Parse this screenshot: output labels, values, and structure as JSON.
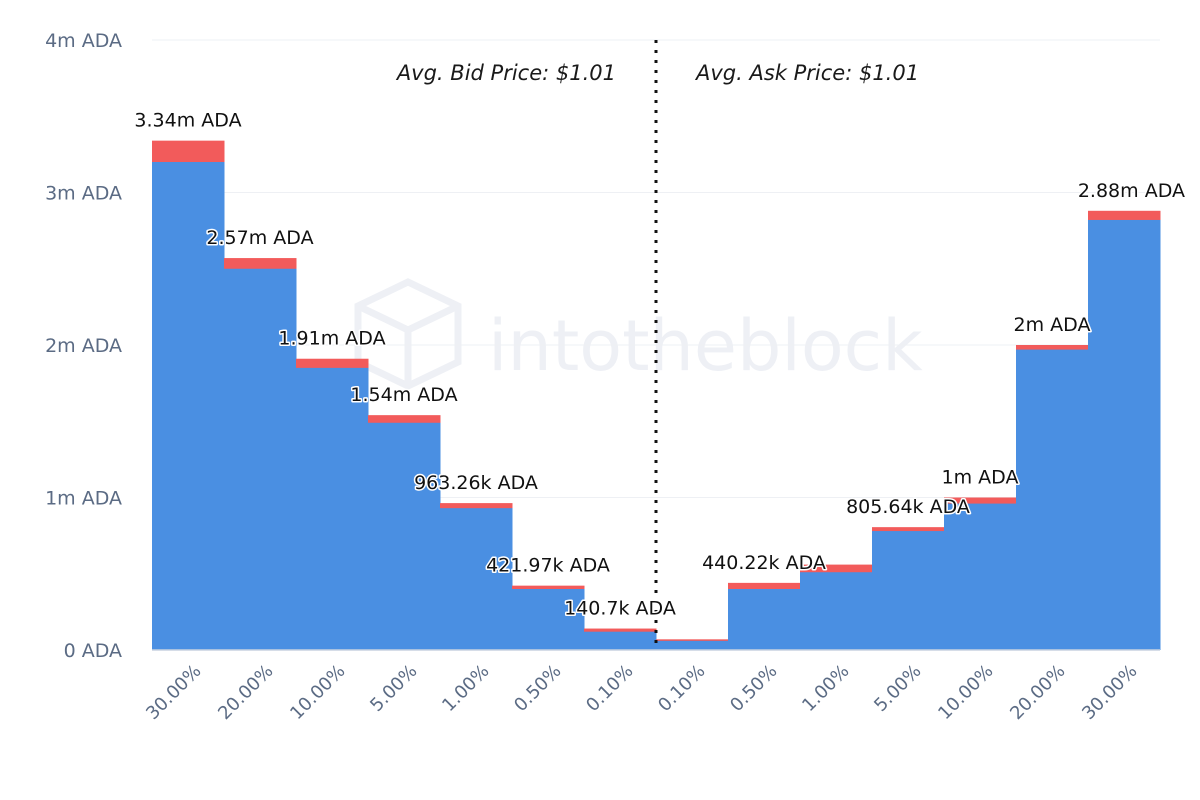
{
  "chart_data": {
    "type": "bar",
    "watermark": "intotheblock",
    "annotations": {
      "bid": "Avg. Bid Price: $1.01",
      "ask": "Avg. Ask Price: $1.01"
    },
    "y_ticks": [
      "0 ADA",
      "1m ADA",
      "2m ADA",
      "3m ADA",
      "4m ADA"
    ],
    "ylim": [
      0,
      4000000
    ],
    "grid": true,
    "categories": [
      "30.00%",
      "20.00%",
      "10.00%",
      "5.00%",
      "1.00%",
      "0.50%",
      "0.10%",
      "0.10%",
      "0.50%",
      "1.00%",
      "5.00%",
      "10.00%",
      "20.00%",
      "30.00%"
    ],
    "series": [
      {
        "role": "base",
        "color": "#4a8fe2",
        "values": [
          3200000,
          2500000,
          1850000,
          1490000,
          930000,
          400000,
          120000,
          60000,
          400000,
          510000,
          780000,
          960000,
          1970000,
          2820000
        ]
      },
      {
        "role": "top",
        "color": "#f25b5b",
        "values": [
          3340000,
          2570000,
          1910000,
          1540000,
          963260,
          421970,
          140700,
          70000,
          440220,
          560000,
          805640,
          1000000,
          2000000,
          2880000
        ]
      }
    ],
    "data_labels": [
      "3.34m ADA",
      "2.57m ADA",
      "1.91m ADA",
      "1.54m ADA",
      "963.26k ADA",
      "421.97k ADA",
      "140.7k ADA",
      "",
      "440.22k ADA",
      "",
      "805.64k ADA",
      "1m ADA",
      "2m ADA",
      "2.88m ADA"
    ]
  }
}
